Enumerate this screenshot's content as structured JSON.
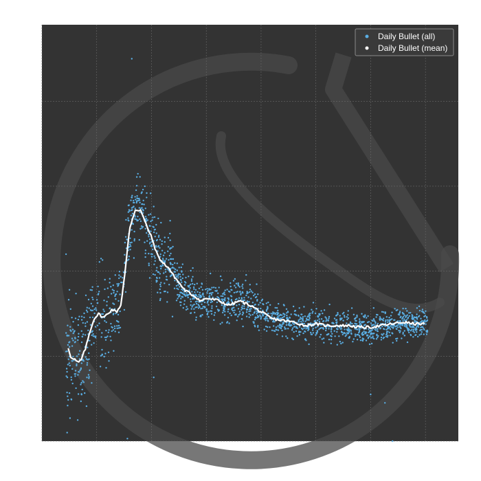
{
  "chart_data": {
    "type": "scatter",
    "title": "",
    "xlabel": "",
    "ylabel": "",
    "xlim": [
      0,
      38
    ],
    "ylim": [
      0,
      4.9
    ],
    "grid": true,
    "legend_position": "top-right",
    "colors": {
      "background": "#333333",
      "grid": "#6a6a6a",
      "all_points": "#5aaee3",
      "mean_line": "#ffffff",
      "watermark": "#4a4a4a"
    },
    "series": [
      {
        "name": "Daily Bullet (all)",
        "kind": "scatter",
        "description": "dense cloud of daily points scattered around the mean curve; spread widest early (~±0.6) and narrowing to ~±0.2 later",
        "outliers": [
          [
            8.2,
            4.5
          ],
          [
            2.2,
            2.2
          ],
          [
            10.2,
            0.75
          ],
          [
            7.8,
            0.03
          ],
          [
            2.3,
            0.1
          ],
          [
            30.0,
            0.55
          ],
          [
            31.3,
            0.45
          ],
          [
            32.0,
            0.0
          ]
        ]
      },
      {
        "name": "Daily Bullet (mean)",
        "kind": "line",
        "x": [
          2.4,
          2.7,
          3.0,
          3.3,
          3.6,
          4.0,
          4.4,
          4.8,
          5.2,
          5.6,
          6.0,
          6.4,
          6.8,
          7.2,
          7.6,
          8.0,
          8.5,
          9.0,
          9.5,
          10.0,
          10.5,
          11.0,
          11.5,
          12.0,
          13.0,
          14.0,
          14.5,
          15.0,
          16.0,
          17.0,
          17.5,
          18.0,
          19.0,
          20.0,
          21.0,
          22.0,
          23.0,
          24.0,
          25.0,
          26.0,
          27.0,
          28.0,
          29.0,
          30.0,
          31.0,
          32.0,
          33.0,
          34.0,
          35.0
        ],
        "y": [
          1.1,
          0.97,
          0.96,
          0.92,
          0.96,
          1.1,
          1.3,
          1.45,
          1.5,
          1.45,
          1.5,
          1.55,
          1.52,
          1.6,
          2.0,
          2.5,
          2.72,
          2.72,
          2.55,
          2.4,
          2.2,
          2.1,
          2.05,
          1.95,
          1.78,
          1.7,
          1.65,
          1.68,
          1.66,
          1.6,
          1.62,
          1.65,
          1.6,
          1.52,
          1.44,
          1.42,
          1.4,
          1.36,
          1.38,
          1.36,
          1.36,
          1.36,
          1.34,
          1.34,
          1.36,
          1.38,
          1.4,
          1.38,
          1.38
        ]
      }
    ]
  },
  "legend": {
    "all_label": "Daily Bullet (all)",
    "mean_label": "Daily Bullet (mean)"
  }
}
